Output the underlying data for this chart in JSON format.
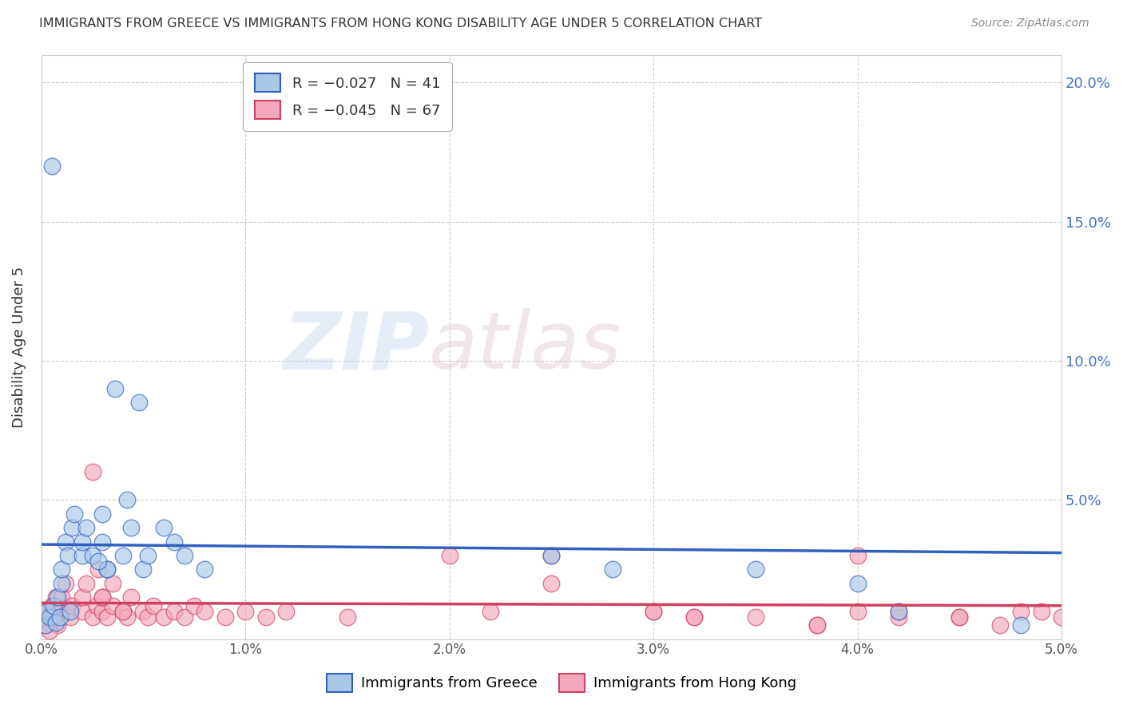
{
  "title": "IMMIGRANTS FROM GREECE VS IMMIGRANTS FROM HONG KONG DISABILITY AGE UNDER 5 CORRELATION CHART",
  "source": "Source: ZipAtlas.com",
  "ylabel": "Disability Age Under 5",
  "ytick_values": [
    0,
    0.05,
    0.1,
    0.15,
    0.2
  ],
  "xlim": [
    0,
    0.05
  ],
  "ylim": [
    0,
    0.21
  ],
  "watermark_zip": "ZIP",
  "watermark_atlas": "atlas",
  "color_greece": "#a8c8e8",
  "color_hk": "#f4a8bc",
  "trendline_greece_color": "#3060c0",
  "trendline_hk_color": "#d04060",
  "legend_color_r": "#3060c0",
  "legend_color_r_hk": "#d04060",
  "trendline_greece": [
    0.034,
    0.031
  ],
  "trendline_hk": [
    0.013,
    0.012
  ],
  "greece_x": [
    0.0002,
    0.0003,
    0.0004,
    0.0005,
    0.0006,
    0.0007,
    0.0008,
    0.0009,
    0.001,
    0.001,
    0.0012,
    0.0013,
    0.0014,
    0.0015,
    0.0016,
    0.002,
    0.002,
    0.0022,
    0.0025,
    0.003,
    0.003,
    0.0032,
    0.004,
    0.0042,
    0.0044,
    0.005,
    0.0052,
    0.006,
    0.0065,
    0.007,
    0.008,
    0.0048,
    0.0036,
    0.025,
    0.028,
    0.035,
    0.04,
    0.042,
    0.048,
    0.0032,
    0.0028
  ],
  "greece_y": [
    0.005,
    0.01,
    0.008,
    0.17,
    0.012,
    0.006,
    0.015,
    0.008,
    0.02,
    0.025,
    0.035,
    0.03,
    0.01,
    0.04,
    0.045,
    0.03,
    0.035,
    0.04,
    0.03,
    0.045,
    0.035,
    0.025,
    0.03,
    0.05,
    0.04,
    0.025,
    0.03,
    0.04,
    0.035,
    0.03,
    0.025,
    0.085,
    0.09,
    0.03,
    0.025,
    0.025,
    0.02,
    0.01,
    0.005,
    0.025,
    0.028
  ],
  "hk_x": [
    0.0001,
    0.0002,
    0.0003,
    0.0004,
    0.0005,
    0.0006,
    0.0007,
    0.0008,
    0.0009,
    0.001,
    0.001,
    0.0012,
    0.0013,
    0.0014,
    0.0015,
    0.002,
    0.002,
    0.0022,
    0.0025,
    0.0027,
    0.003,
    0.003,
    0.0032,
    0.0035,
    0.004,
    0.0042,
    0.0044,
    0.005,
    0.0052,
    0.0055,
    0.006,
    0.0065,
    0.007,
    0.0075,
    0.008,
    0.009,
    0.01,
    0.011,
    0.012,
    0.015,
    0.02,
    0.022,
    0.025,
    0.03,
    0.032,
    0.035,
    0.038,
    0.04,
    0.042,
    0.045,
    0.047,
    0.049,
    0.0025,
    0.0028,
    0.003,
    0.0035,
    0.004,
    0.025,
    0.03,
    0.032,
    0.038,
    0.04,
    0.042,
    0.045,
    0.048,
    0.05,
    0.0002,
    0.0004,
    0.0006
  ],
  "hk_y": [
    0.005,
    0.008,
    0.01,
    0.006,
    0.012,
    0.008,
    0.015,
    0.005,
    0.01,
    0.01,
    0.015,
    0.02,
    0.01,
    0.008,
    0.012,
    0.01,
    0.015,
    0.02,
    0.008,
    0.012,
    0.01,
    0.015,
    0.008,
    0.012,
    0.01,
    0.008,
    0.015,
    0.01,
    0.008,
    0.012,
    0.008,
    0.01,
    0.008,
    0.012,
    0.01,
    0.008,
    0.01,
    0.008,
    0.01,
    0.008,
    0.03,
    0.01,
    0.02,
    0.01,
    0.008,
    0.008,
    0.005,
    0.01,
    0.008,
    0.008,
    0.005,
    0.01,
    0.06,
    0.025,
    0.015,
    0.02,
    0.01,
    0.03,
    0.01,
    0.008,
    0.005,
    0.03,
    0.01,
    0.008,
    0.01,
    0.008,
    0.005,
    0.003,
    0.008
  ]
}
